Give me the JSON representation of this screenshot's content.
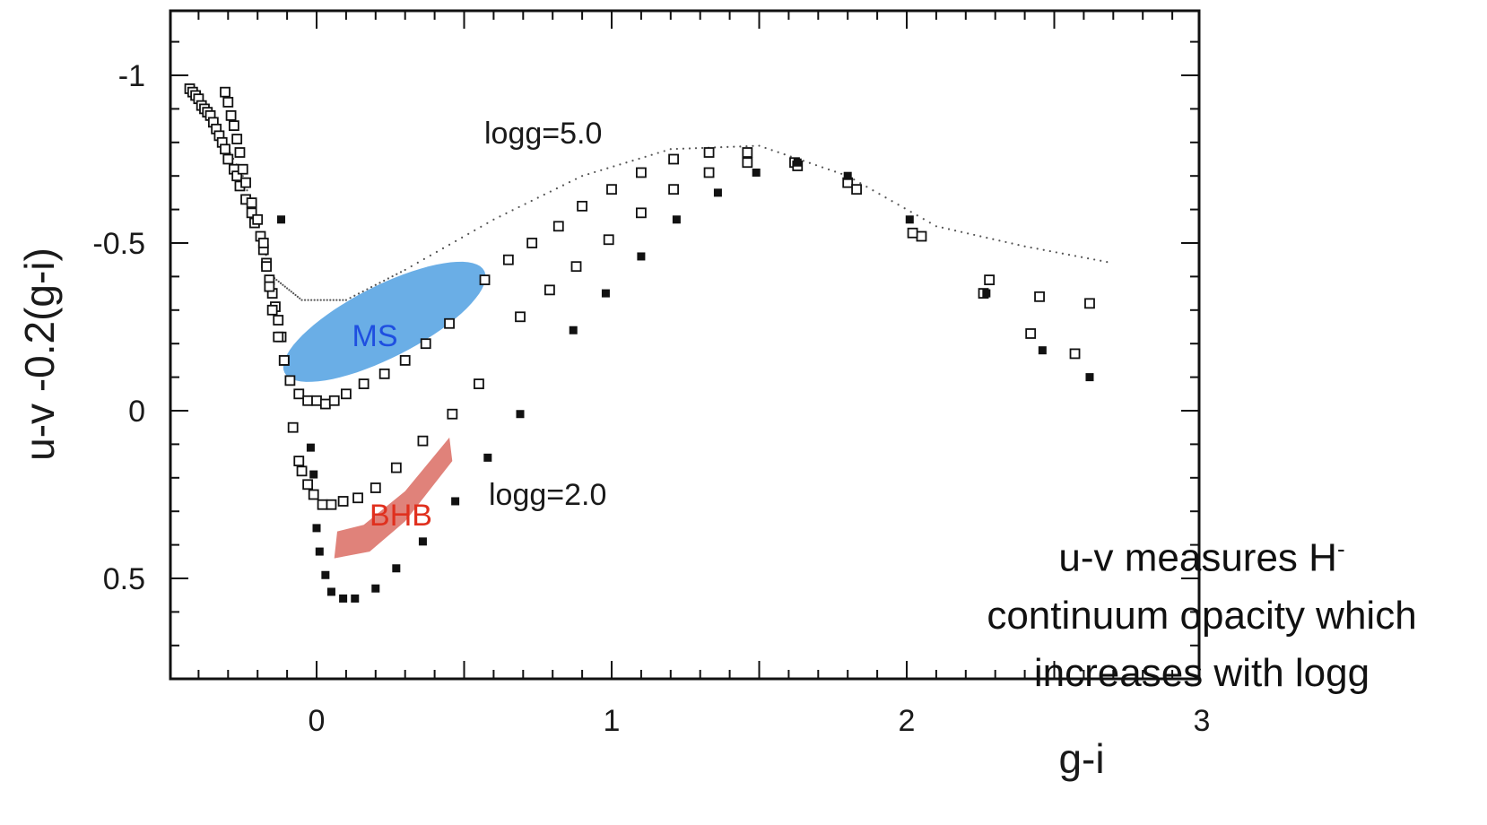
{
  "chart_data": {
    "type": "scatter",
    "title": "",
    "xlabel": "g-i",
    "ylabel": "u-v -0.2(g-i)",
    "xlim": [
      -0.5,
      3.0
    ],
    "ylim": [
      -1.2,
      0.8
    ],
    "y_inverted": true,
    "x_ticks": [
      {
        "value": 0,
        "label": "0"
      },
      {
        "value": 1,
        "label": "1"
      },
      {
        "value": 2,
        "label": "2"
      },
      {
        "value": 3,
        "label": "3"
      }
    ],
    "y_ticks": [
      {
        "value": -1,
        "label": "-1"
      },
      {
        "value": -0.5,
        "label": "-0.5"
      },
      {
        "value": 0,
        "label": "0"
      },
      {
        "value": 0.5,
        "label": "0.5"
      }
    ],
    "grid": false,
    "series": [
      {
        "marker": "open-square",
        "points": [
          [
            -0.43,
            -0.96
          ],
          [
            -0.42,
            -0.95
          ],
          [
            -0.41,
            -0.94
          ],
          [
            -0.4,
            -0.93
          ],
          [
            -0.39,
            -0.91
          ],
          [
            -0.38,
            -0.9
          ],
          [
            -0.37,
            -0.89
          ],
          [
            -0.36,
            -0.88
          ],
          [
            -0.35,
            -0.86
          ],
          [
            -0.34,
            -0.84
          ],
          [
            -0.33,
            -0.82
          ],
          [
            -0.32,
            -0.8
          ],
          [
            -0.31,
            -0.78
          ],
          [
            -0.3,
            -0.75
          ],
          [
            -0.28,
            -0.72
          ],
          [
            -0.27,
            -0.7
          ],
          [
            -0.26,
            -0.67
          ],
          [
            -0.24,
            -0.63
          ],
          [
            -0.22,
            -0.59
          ],
          [
            -0.21,
            -0.56
          ],
          [
            -0.19,
            -0.52
          ],
          [
            -0.18,
            -0.48
          ],
          [
            -0.17,
            -0.44
          ],
          [
            -0.16,
            -0.39
          ],
          [
            -0.15,
            -0.35
          ],
          [
            -0.14,
            -0.31
          ],
          [
            -0.13,
            -0.27
          ],
          [
            -0.12,
            -0.22
          ],
          [
            -0.11,
            -0.15
          ],
          [
            -0.31,
            -0.95
          ],
          [
            -0.3,
            -0.92
          ],
          [
            -0.29,
            -0.88
          ],
          [
            -0.28,
            -0.85
          ],
          [
            -0.27,
            -0.81
          ],
          [
            -0.26,
            -0.77
          ],
          [
            -0.25,
            -0.72
          ],
          [
            -0.24,
            -0.68
          ],
          [
            -0.22,
            -0.62
          ],
          [
            -0.2,
            -0.57
          ],
          [
            -0.18,
            -0.5
          ],
          [
            -0.17,
            -0.43
          ],
          [
            -0.16,
            -0.37
          ],
          [
            -0.15,
            -0.3
          ],
          [
            -0.13,
            -0.22
          ],
          [
            -0.11,
            -0.15
          ],
          [
            -0.09,
            -0.09
          ],
          [
            -0.06,
            -0.05
          ],
          [
            -0.03,
            -0.03
          ],
          [
            0.0,
            -0.03
          ],
          [
            0.03,
            -0.02
          ],
          [
            0.06,
            -0.03
          ],
          [
            0.1,
            -0.05
          ],
          [
            0.16,
            -0.08
          ],
          [
            0.23,
            -0.11
          ],
          [
            0.3,
            -0.15
          ],
          [
            0.37,
            -0.2
          ],
          [
            0.45,
            -0.26
          ],
          [
            0.57,
            -0.39
          ],
          [
            0.65,
            -0.45
          ],
          [
            0.73,
            -0.5
          ],
          [
            0.82,
            -0.55
          ],
          [
            0.9,
            -0.61
          ],
          [
            1.0,
            -0.66
          ],
          [
            1.1,
            -0.71
          ],
          [
            1.21,
            -0.75
          ],
          [
            1.33,
            -0.77
          ],
          [
            1.46,
            -0.77
          ],
          [
            1.62,
            -0.74
          ],
          [
            1.8,
            -0.68
          ],
          [
            2.05,
            -0.52
          ],
          [
            2.28,
            -0.39
          ],
          [
            2.45,
            -0.34
          ],
          [
            2.62,
            -0.32
          ],
          [
            -0.08,
            0.05
          ],
          [
            -0.06,
            0.15
          ],
          [
            -0.05,
            0.18
          ],
          [
            -0.03,
            0.22
          ],
          [
            -0.01,
            0.25
          ],
          [
            0.02,
            0.28
          ],
          [
            0.05,
            0.28
          ],
          [
            0.09,
            0.27
          ],
          [
            0.14,
            0.26
          ],
          [
            0.2,
            0.23
          ],
          [
            0.27,
            0.17
          ],
          [
            0.36,
            0.09
          ],
          [
            0.46,
            0.01
          ],
          [
            0.55,
            -0.08
          ],
          [
            0.69,
            -0.28
          ],
          [
            0.79,
            -0.36
          ],
          [
            0.88,
            -0.43
          ],
          [
            0.99,
            -0.51
          ],
          [
            1.1,
            -0.59
          ],
          [
            1.21,
            -0.66
          ],
          [
            1.33,
            -0.71
          ],
          [
            1.46,
            -0.74
          ],
          [
            1.63,
            -0.73
          ],
          [
            1.83,
            -0.66
          ],
          [
            2.02,
            -0.53
          ],
          [
            2.26,
            -0.35
          ],
          [
            2.42,
            -0.23
          ],
          [
            2.57,
            -0.17
          ]
        ]
      },
      {
        "marker": "filled-square",
        "points": [
          [
            -0.12,
            -0.57
          ],
          [
            -0.02,
            0.11
          ],
          [
            -0.01,
            0.19
          ],
          [
            0.0,
            0.35
          ],
          [
            0.01,
            0.42
          ],
          [
            0.03,
            0.49
          ],
          [
            0.05,
            0.54
          ],
          [
            0.09,
            0.56
          ],
          [
            0.13,
            0.56
          ],
          [
            0.2,
            0.53
          ],
          [
            0.27,
            0.47
          ],
          [
            0.36,
            0.39
          ],
          [
            0.47,
            0.27
          ],
          [
            0.58,
            0.14
          ],
          [
            0.69,
            0.01
          ],
          [
            0.87,
            -0.24
          ],
          [
            0.98,
            -0.35
          ],
          [
            1.1,
            -0.46
          ],
          [
            1.22,
            -0.57
          ],
          [
            1.36,
            -0.65
          ],
          [
            1.49,
            -0.71
          ],
          [
            1.63,
            -0.74
          ],
          [
            1.8,
            -0.7
          ],
          [
            2.01,
            -0.57
          ],
          [
            2.27,
            -0.35
          ],
          [
            2.46,
            -0.18
          ],
          [
            2.62,
            -0.1
          ]
        ]
      }
    ],
    "curves": [
      {
        "label": "logg=5.0",
        "style": "dotted",
        "points": [
          [
            -0.4,
            -0.94
          ],
          [
            -0.25,
            -0.7
          ],
          [
            -0.15,
            -0.4
          ],
          [
            -0.05,
            -0.33
          ],
          [
            0.1,
            -0.33
          ],
          [
            0.3,
            -0.42
          ],
          [
            0.6,
            -0.57
          ],
          [
            0.9,
            -0.7
          ],
          [
            1.2,
            -0.78
          ],
          [
            1.5,
            -0.79
          ],
          [
            1.8,
            -0.7
          ],
          [
            2.1,
            -0.55
          ],
          [
            2.4,
            -0.49
          ],
          [
            2.7,
            -0.44
          ]
        ]
      },
      {
        "label": "logg=2.0",
        "style": "none",
        "points": []
      }
    ],
    "regions": [
      {
        "label": "MS",
        "color": "#6aaee6",
        "label_color": "#1f4fe0"
      },
      {
        "label": "BHB",
        "color": "#e0827a",
        "label_color": "#e0301e"
      }
    ]
  },
  "annotation": {
    "line1": "u-v measures H",
    "superscript": "-",
    "line2": "continuum opacity which",
    "line3": "increases with logg"
  }
}
